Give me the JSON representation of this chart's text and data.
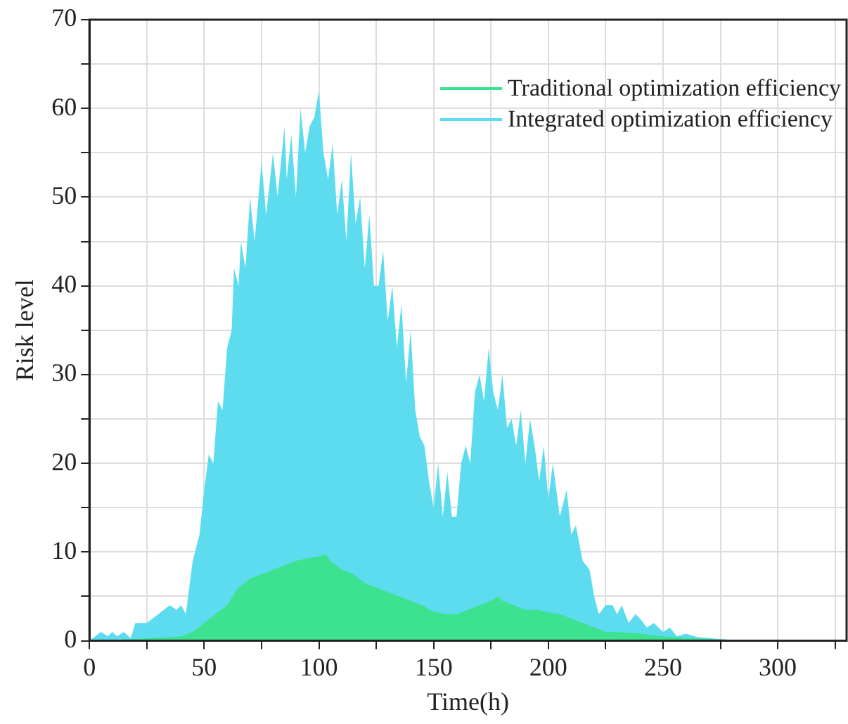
{
  "chart_data": {
    "type": "area",
    "xlabel": "Time(h)",
    "ylabel": "Risk level",
    "xlim": [
      0,
      330
    ],
    "ylim": [
      0,
      70
    ],
    "xticks": [
      0,
      {
        "value": 25,
        "label": null
      },
      50,
      {
        "value": 75,
        "label": null
      },
      100,
      {
        "value": 125,
        "label": null
      },
      150,
      {
        "value": 175,
        "label": null
      },
      200,
      {
        "value": 225,
        "label": null
      },
      250,
      {
        "value": 275,
        "label": null
      },
      300,
      {
        "value": 325,
        "label": null
      }
    ],
    "yticks": [
      0,
      {
        "value": 5,
        "label": null
      },
      10,
      {
        "value": 15,
        "label": null
      },
      20,
      {
        "value": 25,
        "label": null
      },
      30,
      {
        "value": 35,
        "label": null
      },
      40,
      {
        "value": 45,
        "label": null
      },
      50,
      {
        "value": 55,
        "label": null
      },
      60,
      {
        "value": 65,
        "label": null
      },
      70
    ],
    "grid": true,
    "legend": "top right",
    "series": [
      {
        "name": "Traditional optimization efficiency",
        "color": "#3ce28f",
        "x": [
          0,
          20,
          40,
          45,
          50,
          55,
          60,
          65,
          70,
          75,
          80,
          85,
          90,
          95,
          100,
          103,
          105,
          110,
          115,
          120,
          125,
          130,
          135,
          140,
          145,
          150,
          155,
          160,
          165,
          170,
          175,
          178,
          180,
          185,
          190,
          195,
          200,
          205,
          210,
          215,
          220,
          225,
          230,
          240,
          250,
          260,
          270,
          280,
          300,
          330
        ],
        "values": [
          0,
          0.2,
          0.5,
          1,
          2,
          3,
          4,
          6,
          7,
          7.5,
          8,
          8.5,
          9,
          9.3,
          9.5,
          9.8,
          9,
          8,
          7.5,
          6.5,
          6,
          5.5,
          5,
          4.5,
          4,
          3.3,
          3,
          3,
          3.5,
          4,
          4.5,
          5,
          4.5,
          4,
          3.5,
          3.5,
          3.2,
          3,
          2.5,
          2,
          1.5,
          1,
          1,
          0.8,
          0.5,
          0.3,
          0.2,
          0.1,
          0,
          0
        ]
      },
      {
        "name": "Integrated optimization efficiency",
        "color": "#5ddcf0",
        "x": [
          0,
          5,
          8,
          10,
          12,
          15,
          18,
          20,
          25,
          30,
          35,
          38,
          40,
          42,
          45,
          48,
          50,
          52,
          54,
          56,
          58,
          60,
          62,
          63,
          65,
          66,
          68,
          70,
          72,
          75,
          77,
          80,
          82,
          85,
          86,
          88,
          90,
          92,
          94,
          96,
          98,
          100,
          102,
          104,
          106,
          108,
          110,
          112,
          114,
          116,
          118,
          120,
          122,
          124,
          126,
          128,
          130,
          132,
          134,
          136,
          138,
          140,
          142,
          144,
          146,
          148,
          150,
          152,
          154,
          156,
          158,
          160,
          162,
          164,
          166,
          168,
          170,
          172,
          174,
          176,
          178,
          180,
          182,
          184,
          186,
          188,
          190,
          192,
          194,
          196,
          198,
          200,
          202,
          205,
          208,
          210,
          212,
          215,
          218,
          220,
          222,
          225,
          228,
          230,
          232,
          235,
          238,
          240,
          243,
          246,
          250,
          253,
          256,
          260,
          265,
          270,
          275,
          280,
          290,
          300,
          330
        ],
        "values": [
          0,
          1,
          0.5,
          1,
          0.5,
          1,
          0.3,
          2,
          2,
          3,
          4,
          3.5,
          4,
          3,
          9,
          12,
          17,
          21,
          20,
          27,
          26,
          33,
          35,
          42,
          40,
          45,
          42,
          50,
          45,
          54,
          48,
          55,
          50,
          58,
          52,
          57,
          50,
          60,
          55,
          58,
          59,
          62,
          55,
          52,
          56,
          48,
          52,
          45,
          55,
          47,
          50,
          42,
          48,
          40,
          40,
          44,
          36,
          40,
          33,
          38,
          29,
          35,
          26,
          23,
          22,
          18,
          15,
          20,
          14,
          19,
          14,
          14,
          20,
          22,
          20,
          28,
          30,
          27,
          33,
          28,
          26,
          30,
          24,
          25,
          22,
          26,
          20,
          25,
          22,
          18,
          22,
          16,
          20,
          14,
          17,
          12,
          13,
          9,
          8,
          5,
          3,
          4,
          4,
          3,
          4,
          2,
          3,
          2.5,
          1.5,
          2,
          1,
          1.5,
          0.5,
          0.8,
          0.4,
          0.3,
          0.2,
          0.1,
          0.1,
          0,
          0
        ]
      }
    ]
  }
}
